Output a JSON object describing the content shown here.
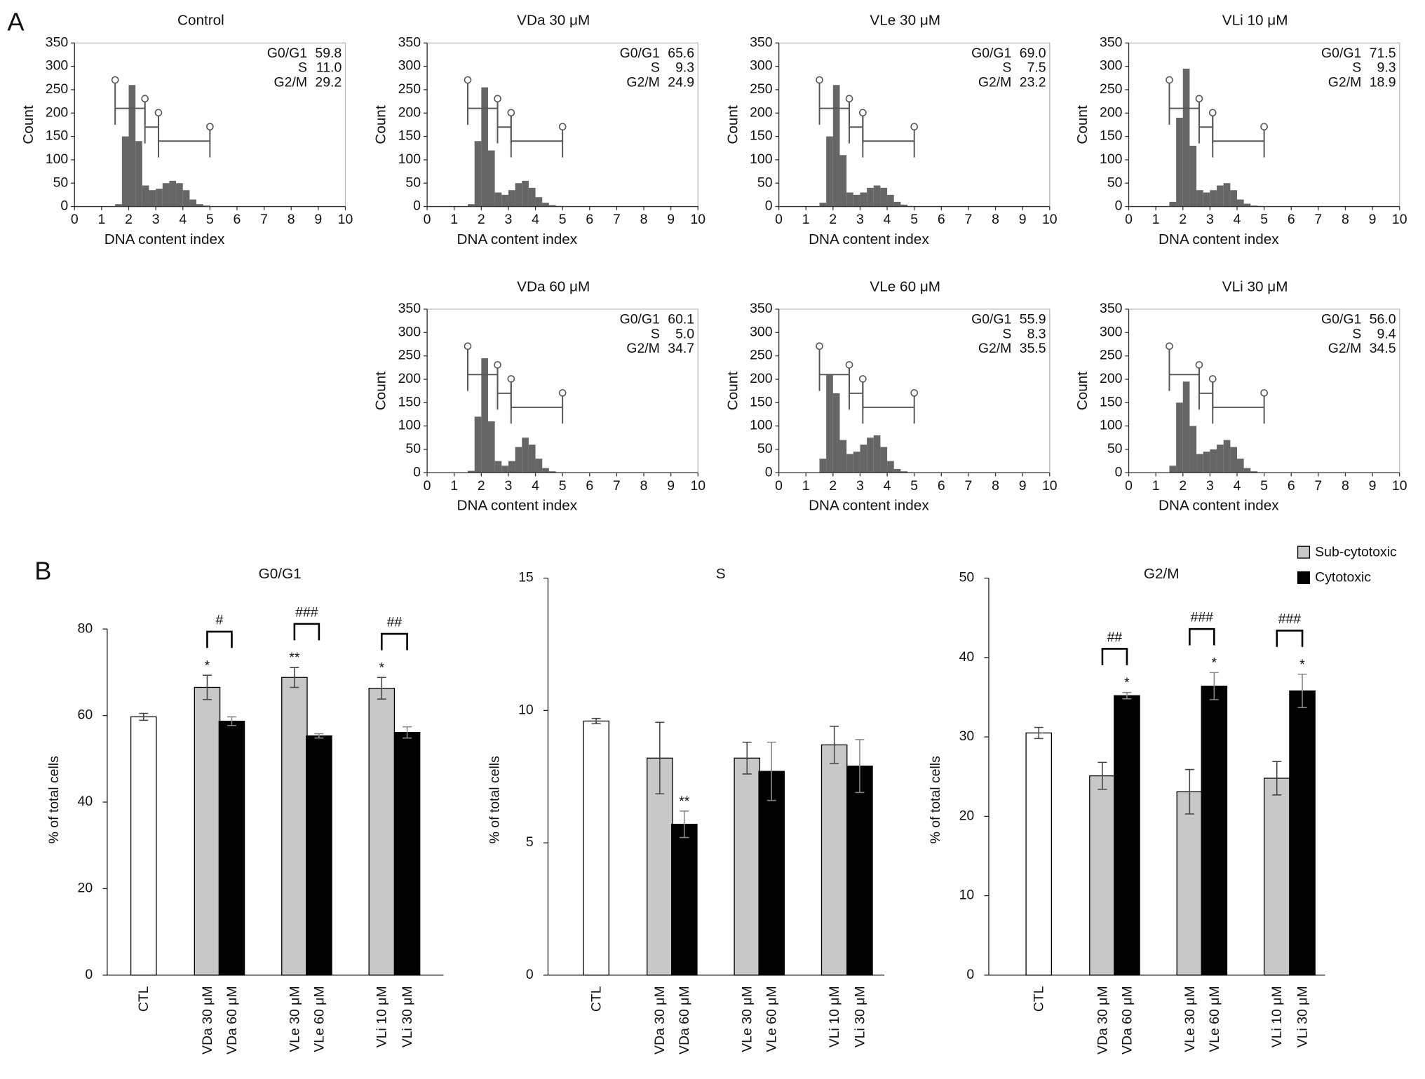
{
  "panel_labels": [
    "A",
    "B"
  ],
  "chart_data": [
    {
      "type": "histogram",
      "title": "Control",
      "xlabel": "DNA content index",
      "ylabel": "Count",
      "color": "#666666",
      "xlim": [
        0,
        10
      ],
      "xticks": [
        0,
        1,
        2,
        3,
        4,
        5,
        6,
        7,
        8,
        9,
        10
      ],
      "ylim": [
        0,
        350
      ],
      "yticks": [
        0,
        50,
        100,
        150,
        200,
        250,
        300,
        350
      ],
      "bins": [
        1.5,
        1.75,
        2,
        2.25,
        2.5,
        2.75,
        3,
        3.25,
        3.5,
        3.75,
        4,
        4.25,
        4.5,
        4.75,
        5
      ],
      "counts": [
        5,
        150,
        260,
        140,
        45,
        35,
        38,
        50,
        55,
        50,
        35,
        15,
        5,
        2
      ],
      "gates": [
        [
          1.5,
          2.6,
          210
        ],
        [
          2.6,
          3.1,
          170
        ],
        [
          3.1,
          5,
          140
        ]
      ],
      "stats": {
        "names": [
          "G0/G1",
          "S",
          "G2/M"
        ],
        "values": [
          59.8,
          11,
          29.2
        ],
        "value_labels": [
          "59.8",
          "11.0",
          "29.2"
        ]
      }
    },
    {
      "type": "histogram",
      "title": "VDa 30 μM",
      "xlabel": "DNA content index",
      "ylabel": "Count",
      "color": "#666666",
      "xlim": [
        0,
        10
      ],
      "xticks": [
        0,
        1,
        2,
        3,
        4,
        5,
        6,
        7,
        8,
        9,
        10
      ],
      "ylim": [
        0,
        350
      ],
      "yticks": [
        0,
        50,
        100,
        150,
        200,
        250,
        300,
        350
      ],
      "bins": [
        1.5,
        1.75,
        2,
        2.25,
        2.5,
        2.75,
        3,
        3.25,
        3.5,
        3.75,
        4,
        4.25,
        4.5,
        4.75,
        5
      ],
      "counts": [
        5,
        140,
        255,
        120,
        30,
        25,
        35,
        50,
        55,
        40,
        20,
        8,
        3,
        1
      ],
      "gates": [
        [
          1.5,
          2.6,
          210
        ],
        [
          2.6,
          3.1,
          170
        ],
        [
          3.1,
          5,
          140
        ]
      ],
      "stats": {
        "names": [
          "G0/G1",
          "S",
          "G2/M"
        ],
        "values": [
          65.6,
          9.3,
          24.9
        ],
        "value_labels": [
          "65.6",
          "9.3",
          "24.9"
        ]
      }
    },
    {
      "type": "histogram",
      "title": "VLe 30 μM",
      "xlabel": "DNA content index",
      "ylabel": "Count",
      "color": "#666666",
      "xlim": [
        0,
        10
      ],
      "xticks": [
        0,
        1,
        2,
        3,
        4,
        5,
        6,
        7,
        8,
        9,
        10
      ],
      "ylim": [
        0,
        350
      ],
      "yticks": [
        0,
        50,
        100,
        150,
        200,
        250,
        300,
        350
      ],
      "bins": [
        1.5,
        1.75,
        2,
        2.25,
        2.5,
        2.75,
        3,
        3.25,
        3.5,
        3.75,
        4,
        4.25,
        4.5,
        4.75,
        5
      ],
      "counts": [
        8,
        150,
        260,
        110,
        30,
        25,
        30,
        40,
        45,
        40,
        25,
        10,
        4,
        1
      ],
      "gates": [
        [
          1.5,
          2.6,
          210
        ],
        [
          2.6,
          3.1,
          170
        ],
        [
          3.1,
          5,
          140
        ]
      ],
      "stats": {
        "names": [
          "G0/G1",
          "S",
          "G2/M"
        ],
        "values": [
          69,
          7.5,
          23.2
        ],
        "value_labels": [
          "69.0",
          "7.5",
          "23.2"
        ]
      }
    },
    {
      "type": "histogram",
      "title": "VLi 10 μM",
      "xlabel": "DNA content index",
      "ylabel": "Count",
      "color": "#666666",
      "xlim": [
        0,
        10
      ],
      "xticks": [
        0,
        1,
        2,
        3,
        4,
        5,
        6,
        7,
        8,
        9,
        10
      ],
      "ylim": [
        0,
        350
      ],
      "yticks": [
        0,
        50,
        100,
        150,
        200,
        250,
        300,
        350
      ],
      "bins": [
        1.5,
        1.75,
        2,
        2.25,
        2.5,
        2.75,
        3,
        3.25,
        3.5,
        3.75,
        4,
        4.25,
        4.5,
        4.75,
        5
      ],
      "counts": [
        10,
        190,
        295,
        130,
        35,
        30,
        35,
        45,
        50,
        35,
        15,
        6,
        2,
        1
      ],
      "gates": [
        [
          1.5,
          2.6,
          210
        ],
        [
          2.6,
          3.1,
          170
        ],
        [
          3.1,
          5,
          140
        ]
      ],
      "stats": {
        "names": [
          "G0/G1",
          "S",
          "G2/M"
        ],
        "values": [
          71.5,
          9.3,
          18.9
        ],
        "value_labels": [
          "71.5",
          "9.3",
          "18.9"
        ]
      }
    },
    {
      "type": "histogram",
      "title": "VDa 60 μM",
      "xlabel": "DNA content index",
      "ylabel": "Count",
      "color": "#666666",
      "xlim": [
        0,
        10
      ],
      "xticks": [
        0,
        1,
        2,
        3,
        4,
        5,
        6,
        7,
        8,
        9,
        10
      ],
      "ylim": [
        0,
        350
      ],
      "yticks": [
        0,
        50,
        100,
        150,
        200,
        250,
        300,
        350
      ],
      "bins": [
        1.5,
        1.75,
        2,
        2.25,
        2.5,
        2.75,
        3,
        3.25,
        3.5,
        3.75,
        4,
        4.25,
        4.5,
        4.75,
        5
      ],
      "counts": [
        4,
        120,
        245,
        110,
        25,
        15,
        25,
        55,
        75,
        60,
        30,
        10,
        3,
        1
      ],
      "gates": [
        [
          1.5,
          2.6,
          210
        ],
        [
          2.6,
          3.1,
          170
        ],
        [
          3.1,
          5,
          140
        ]
      ],
      "stats": {
        "names": [
          "G0/G1",
          "S",
          "G2/M"
        ],
        "values": [
          60.1,
          5,
          34.7
        ],
        "value_labels": [
          "60.1",
          "5.0",
          "34.7"
        ]
      }
    },
    {
      "type": "histogram",
      "title": "VLe 60 μM",
      "xlabel": "DNA content index",
      "ylabel": "Count",
      "color": "#666666",
      "xlim": [
        0,
        10
      ],
      "xticks": [
        0,
        1,
        2,
        3,
        4,
        5,
        6,
        7,
        8,
        9,
        10
      ],
      "ylim": [
        0,
        350
      ],
      "yticks": [
        0,
        50,
        100,
        150,
        200,
        250,
        300,
        350
      ],
      "bins": [
        1.5,
        1.75,
        2,
        2.25,
        2.5,
        2.75,
        3,
        3.25,
        3.5,
        3.75,
        4,
        4.25,
        4.5,
        4.75,
        5
      ],
      "counts": [
        30,
        210,
        170,
        70,
        40,
        45,
        60,
        75,
        80,
        55,
        25,
        8,
        3,
        1
      ],
      "gates": [
        [
          1.5,
          2.6,
          210
        ],
        [
          2.6,
          3.1,
          170
        ],
        [
          3.1,
          5,
          140
        ]
      ],
      "stats": {
        "names": [
          "G0/G1",
          "S",
          "G2/M"
        ],
        "values": [
          55.9,
          8.3,
          35.5
        ],
        "value_labels": [
          "55.9",
          "8.3",
          "35.5"
        ]
      }
    },
    {
      "type": "histogram",
      "title": "VLi 30 μM",
      "xlabel": "DNA content index",
      "ylabel": "Count",
      "color": "#666666",
      "xlim": [
        0,
        10
      ],
      "xticks": [
        0,
        1,
        2,
        3,
        4,
        5,
        6,
        7,
        8,
        9,
        10
      ],
      "ylim": [
        0,
        350
      ],
      "yticks": [
        0,
        50,
        100,
        150,
        200,
        250,
        300,
        350
      ],
      "bins": [
        1.5,
        1.75,
        2,
        2.25,
        2.5,
        2.75,
        3,
        3.25,
        3.5,
        3.75,
        4,
        4.25,
        4.5,
        4.75,
        5
      ],
      "counts": [
        15,
        150,
        195,
        100,
        40,
        45,
        50,
        60,
        70,
        55,
        30,
        10,
        3,
        1
      ],
      "gates": [
        [
          1.5,
          2.6,
          210
        ],
        [
          2.6,
          3.1,
          170
        ],
        [
          3.1,
          5,
          140
        ]
      ],
      "stats": {
        "names": [
          "G0/G1",
          "S",
          "G2/M"
        ],
        "values": [
          56,
          9.4,
          34.5
        ],
        "value_labels": [
          "56.0",
          "9.4",
          "34.5"
        ]
      }
    },
    {
      "type": "bar",
      "title": "G0/G1",
      "ylabel": "% of total cells",
      "ylim": [
        0,
        80
      ],
      "yticks": [
        0,
        20,
        40,
        60,
        80
      ],
      "categories": [
        "CTL",
        "VDa 30 μM",
        "VDa 60 μM",
        "VLe 30 μM",
        "VLe 60 μM",
        "VLi 10 μM",
        "VLi 30 μM"
      ],
      "values": [
        59.7,
        66.5,
        58.7,
        68.8,
        55.3,
        66.3,
        56.1
      ],
      "errors": [
        0.8,
        2.8,
        1,
        2.3,
        0.5,
        2.5,
        1.3
      ],
      "colors": [
        "#ffffff",
        "#c8c8c8",
        "#000000",
        "#c8c8c8",
        "#000000",
        "#c8c8c8",
        "#000000"
      ],
      "star_labels": [
        null,
        "*",
        null,
        "**",
        null,
        "*",
        null
      ],
      "brackets": [
        {
          "pair": [
            1,
            2
          ],
          "label": "#"
        },
        {
          "pair": [
            3,
            4
          ],
          "label": "###"
        },
        {
          "pair": [
            5,
            6
          ],
          "label": "##"
        }
      ]
    },
    {
      "type": "bar",
      "title": "S",
      "ylabel": "% of total cells",
      "ylim": [
        0,
        15
      ],
      "yticks": [
        0,
        5,
        10,
        15
      ],
      "categories": [
        "CTL",
        "VDa 30 μM",
        "VDa 60 μM",
        "VLe 30 μM",
        "VLe 60 μM",
        "VLi 10 μM",
        "VLi 30 μM"
      ],
      "values": [
        9.6,
        8.2,
        5.7,
        8.2,
        7.7,
        8.7,
        7.9
      ],
      "errors": [
        0.1,
        1.35,
        0.5,
        0.6,
        1.1,
        0.7,
        1
      ],
      "colors": [
        "#ffffff",
        "#c8c8c8",
        "#000000",
        "#c8c8c8",
        "#000000",
        "#c8c8c8",
        "#000000"
      ],
      "star_labels": [
        null,
        null,
        "**",
        null,
        null,
        null,
        null
      ],
      "brackets": []
    },
    {
      "type": "bar",
      "title": "G2/M",
      "ylabel": "% of total cells",
      "ylim": [
        0,
        50
      ],
      "yticks": [
        0,
        10,
        20,
        30,
        40,
        50
      ],
      "categories": [
        "CTL",
        "VDa 30 μM",
        "VDa 60 μM",
        "VLe 30 μM",
        "VLe 60 μM",
        "VLi 10 μM",
        "VLi 30 μM"
      ],
      "values": [
        30.5,
        25.1,
        35.2,
        23.1,
        36.4,
        24.8,
        35.8
      ],
      "errors": [
        0.7,
        1.7,
        0.4,
        2.8,
        1.7,
        2.1,
        2.1
      ],
      "colors": [
        "#ffffff",
        "#c8c8c8",
        "#000000",
        "#c8c8c8",
        "#000000",
        "#c8c8c8",
        "#000000"
      ],
      "star_labels": [
        null,
        null,
        "*",
        null,
        "*",
        null,
        "*"
      ],
      "brackets": [
        {
          "pair": [
            1,
            2
          ],
          "label": "##"
        },
        {
          "pair": [
            3,
            4
          ],
          "label": "###"
        },
        {
          "pair": [
            5,
            6
          ],
          "label": "###"
        }
      ],
      "legend": [
        {
          "name": "Sub-cytotoxic",
          "color": "#c8c8c8"
        },
        {
          "name": "Cytotoxic",
          "color": "#000000"
        }
      ]
    }
  ]
}
